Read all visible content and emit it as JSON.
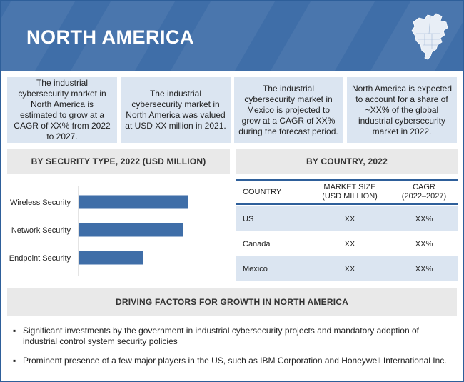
{
  "header": {
    "title": "NORTH AMERICA",
    "map_icon": "north-america-map-icon",
    "colors": {
      "banner": "#3f6ea8",
      "box": "#dbe5f1",
      "bar": "#3f6ea8"
    }
  },
  "info_boxes": [
    {
      "text": "The industrial cybersecurity market in North America is estimated to grow at a CAGR of XX% from 2022 to 2027."
    },
    {
      "text": "The industrial cybersecurity market in North America was valued at USD XX million in 2021."
    },
    {
      "text": "The industrial cybersecurity market in Mexico is projected to grow at a CAGR of XX% during the forecast period."
    },
    {
      "text": "North America is expected to account for a share of ~XX% of the global industrial cybersecurity market in 2022."
    }
  ],
  "security_section": {
    "title": "BY SECURITY TYPE, 2022 (USD MILLION)"
  },
  "country_section": {
    "title": "BY COUNTRY, 2022"
  },
  "chart_data": {
    "type": "bar",
    "orientation": "horizontal",
    "title": "BY SECURITY TYPE, 2022 (USD MILLION)",
    "categories": [
      "Wireless Security",
      "Network Security",
      "Endpoint Security"
    ],
    "values": [
      100,
      96,
      59
    ],
    "xlim": [
      0,
      100
    ],
    "grid": false,
    "value_axis_visible": false
  },
  "country_table": {
    "headers": [
      "COUNTRY",
      "MARKET SIZE\n(USD MILLION)",
      "CAGR\n(2022–2027)"
    ],
    "rows": [
      [
        "US",
        "XX",
        "XX%"
      ],
      [
        "Canada",
        "XX",
        "XX%"
      ],
      [
        "Mexico",
        "XX",
        "XX%"
      ]
    ]
  },
  "drivers": {
    "title": "DRIVING FACTORS FOR GROWTH IN NORTH AMERICA",
    "items": [
      "Significant investments by the government in industrial cybersecurity projects and mandatory adoption of industrial control system security policies",
      "Prominent presence of a few major players in the US, such as IBM Corporation and Honeywell International Inc."
    ]
  }
}
